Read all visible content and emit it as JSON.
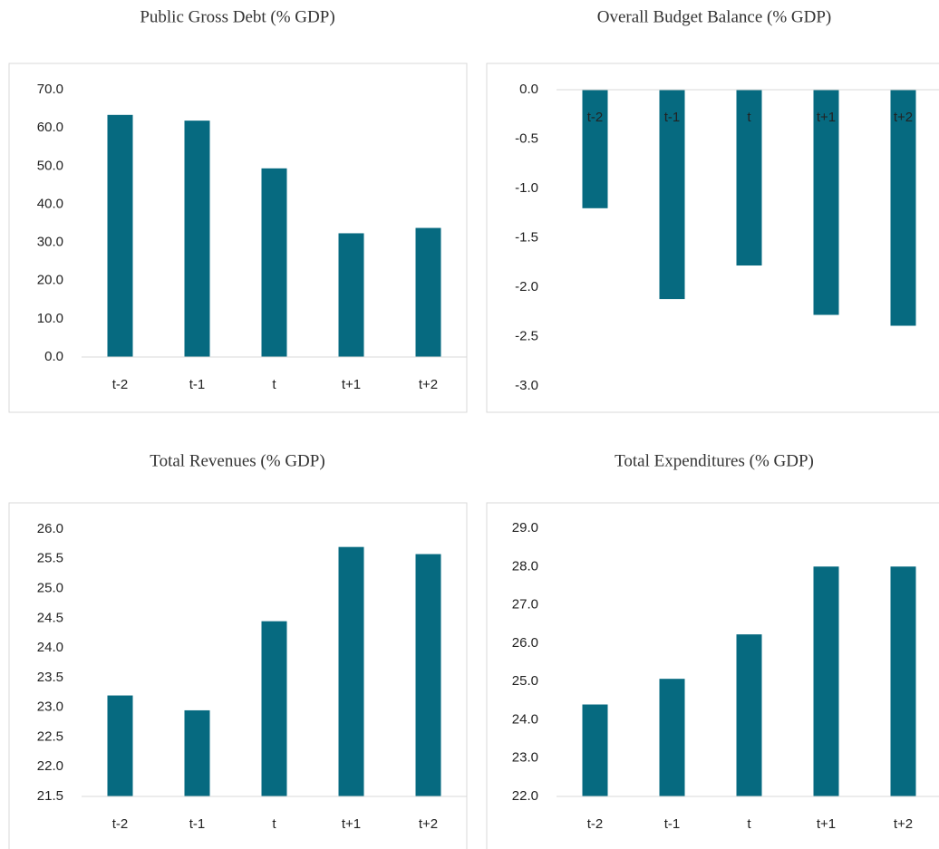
{
  "chart_data": [
    {
      "type": "bar",
      "title": "Public Gross Debt (% GDP)",
      "categories": [
        "t-2",
        "t-1",
        "t",
        "t+1",
        "t+2"
      ],
      "values": [
        63.4,
        61.9,
        49.4,
        32.4,
        33.8
      ],
      "color": "#066a80",
      "ylim": [
        0,
        70
      ],
      "yticks": [
        {
          "value": 0,
          "label": "0.0"
        },
        {
          "value": 10,
          "label": "10.0"
        },
        {
          "value": 20,
          "label": "20.0"
        },
        {
          "value": 30,
          "label": "30.0"
        },
        {
          "value": 40,
          "label": "40.0"
        },
        {
          "value": 50,
          "label": "50.0"
        },
        {
          "value": 60,
          "label": "60.0"
        },
        {
          "value": 70,
          "label": "70.0"
        }
      ]
    },
    {
      "type": "bar",
      "title": "Overall Budget Balance (% GDP)",
      "categories": [
        "t-2",
        "t-1",
        "t",
        "t+1",
        "t+2"
      ],
      "values": [
        -1.2,
        -2.12,
        -1.78,
        -2.28,
        -2.39
      ],
      "color": "#066a80",
      "ylim": [
        -3,
        0
      ],
      "yticks": [
        {
          "value": 0,
          "label": "0.0"
        },
        -0.5,
        {
          "value": -1,
          "label": "-1.0"
        },
        -1.5,
        {
          "value": -2,
          "label": "-2.0"
        },
        -2.5,
        {
          "value": -3,
          "label": "-3.0"
        }
      ]
    },
    {
      "type": "bar",
      "title": "Total Revenues (% GDP)",
      "categories": [
        "t-2",
        "t-1",
        "t",
        "t+1",
        "t+2"
      ],
      "values": [
        23.2,
        22.95,
        24.45,
        25.7,
        25.58
      ],
      "color": "#066a80",
      "ylim": [
        21.5,
        26
      ],
      "yticks": [
        21.5,
        {
          "value": 22,
          "label": "22.0"
        },
        22.5,
        {
          "value": 23,
          "label": "23.0"
        },
        23.5,
        {
          "value": 24,
          "label": "24.0"
        },
        24.5,
        {
          "value": 25,
          "label": "25.0"
        },
        25.5,
        {
          "value": 26,
          "label": "26.0"
        }
      ]
    },
    {
      "type": "bar",
      "title": "Total Expenditures (% GDP)",
      "categories": [
        "t-2",
        "t-1",
        "t",
        "t+1",
        "t+2"
      ],
      "values": [
        24.4,
        25.07,
        26.23,
        28.0,
        28.0
      ],
      "color": "#066a80",
      "ylim": [
        22,
        29
      ],
      "yticks": [
        {
          "value": 22,
          "label": "22.0"
        },
        {
          "value": 23,
          "label": "23.0"
        },
        {
          "value": 24,
          "label": "24.0"
        },
        {
          "value": 25,
          "label": "25.0"
        },
        {
          "value": 26,
          "label": "26.0"
        },
        {
          "value": 27,
          "label": "27.0"
        },
        {
          "value": 28,
          "label": "28.0"
        },
        {
          "value": 29,
          "label": "29.0"
        }
      ]
    }
  ]
}
